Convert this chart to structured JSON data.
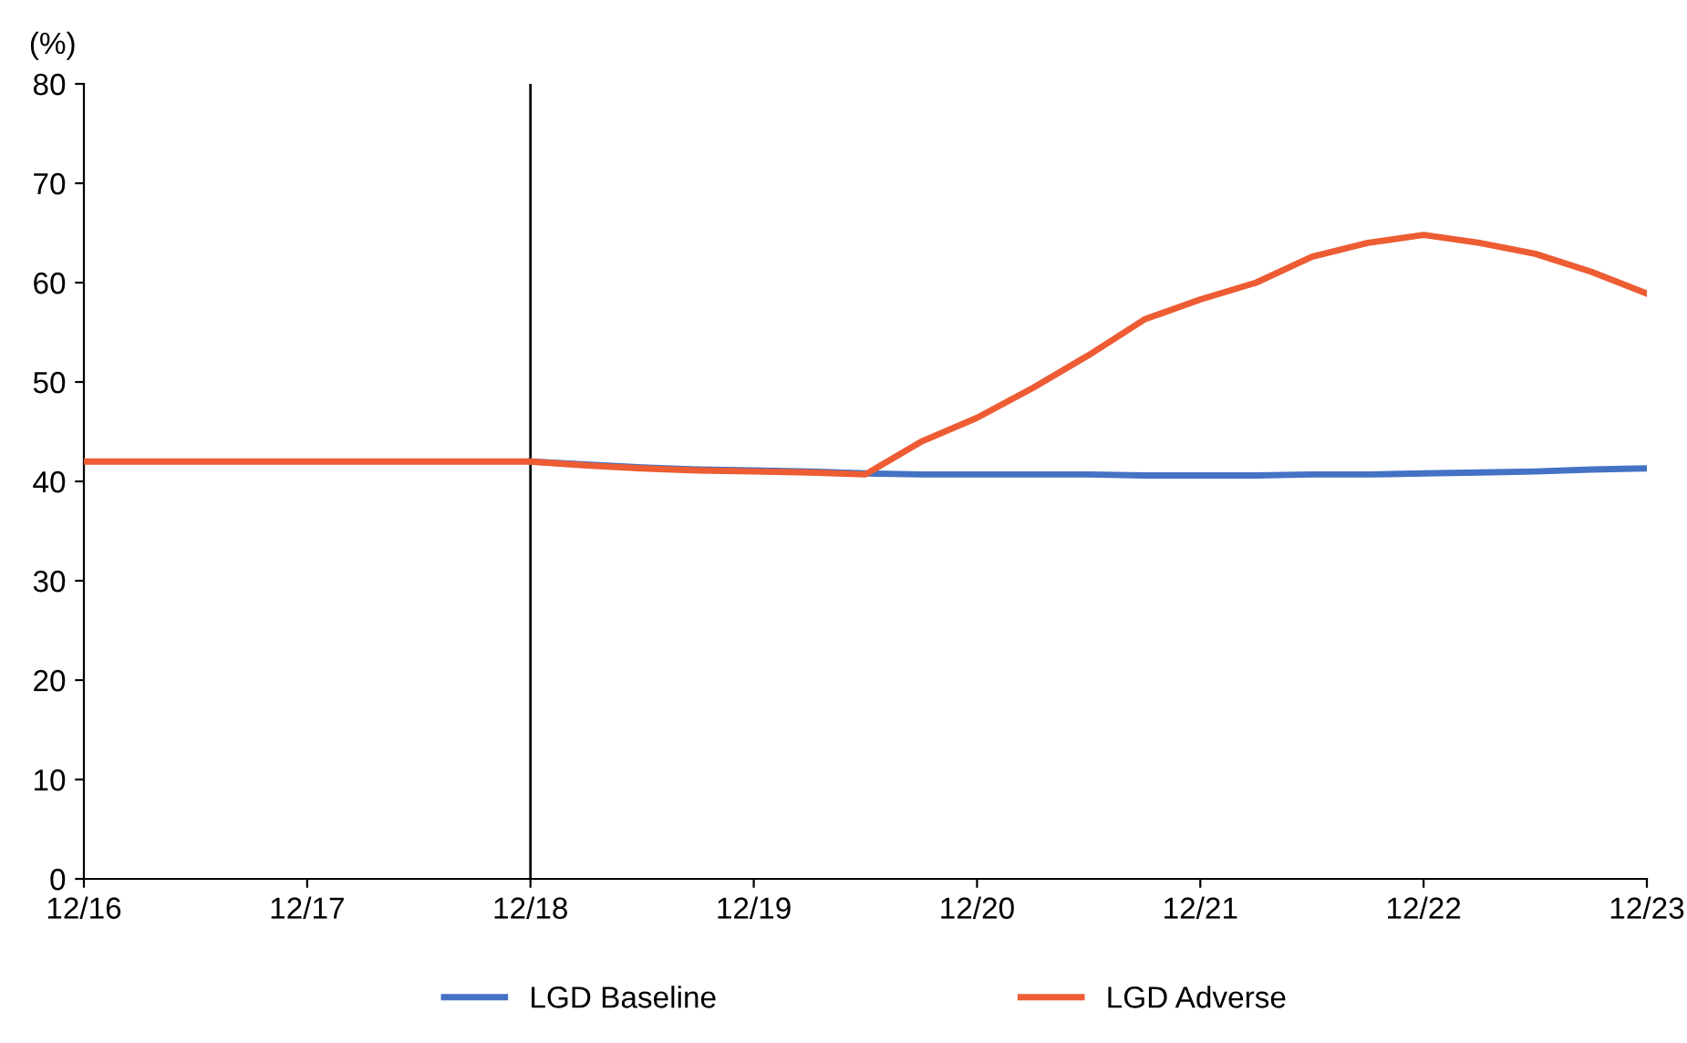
{
  "chart_data": {
    "type": "line",
    "ylabel": "(%)",
    "categories": [
      "12/16",
      null,
      null,
      null,
      "12/17",
      null,
      null,
      null,
      "12/18",
      null,
      null,
      null,
      "12/19",
      null,
      null,
      null,
      "12/20",
      null,
      null,
      null,
      "12/21",
      null,
      null,
      null,
      "12/22",
      null,
      null,
      null,
      "12/23"
    ],
    "series": [
      {
        "name": "LGD Baseline",
        "color": "#4472c4",
        "values": [
          null,
          null,
          null,
          null,
          null,
          null,
          null,
          null,
          42.0,
          41.7,
          41.4,
          41.2,
          41.1,
          41.0,
          40.8,
          40.7,
          40.7,
          40.7,
          40.7,
          40.6,
          40.6,
          40.6,
          40.7,
          40.7,
          40.8,
          40.9,
          41.0,
          41.2,
          41.3
        ]
      },
      {
        "name": "LGD Adverse",
        "color": "#ed5c33",
        "values": [
          42,
          42,
          42,
          42,
          42,
          42,
          42,
          42,
          42.0,
          41.6,
          41.3,
          41.1,
          41.0,
          40.9,
          40.7,
          44.0,
          46.4,
          49.4,
          52.7,
          56.3,
          58.3,
          60.0,
          62.6,
          64.0,
          64.8,
          64.0,
          62.9,
          61.1,
          58.9
        ]
      }
    ],
    "ylim": [
      0,
      80
    ],
    "yticks": [
      0,
      10,
      20,
      30,
      40,
      50,
      60,
      70,
      80
    ],
    "ref_lines": [
      {
        "axis": "x",
        "value": "12/18",
        "color": "#000000"
      }
    ],
    "legend": "bottom",
    "grid": false,
    "marker": "none",
    "line_style": "solid"
  }
}
